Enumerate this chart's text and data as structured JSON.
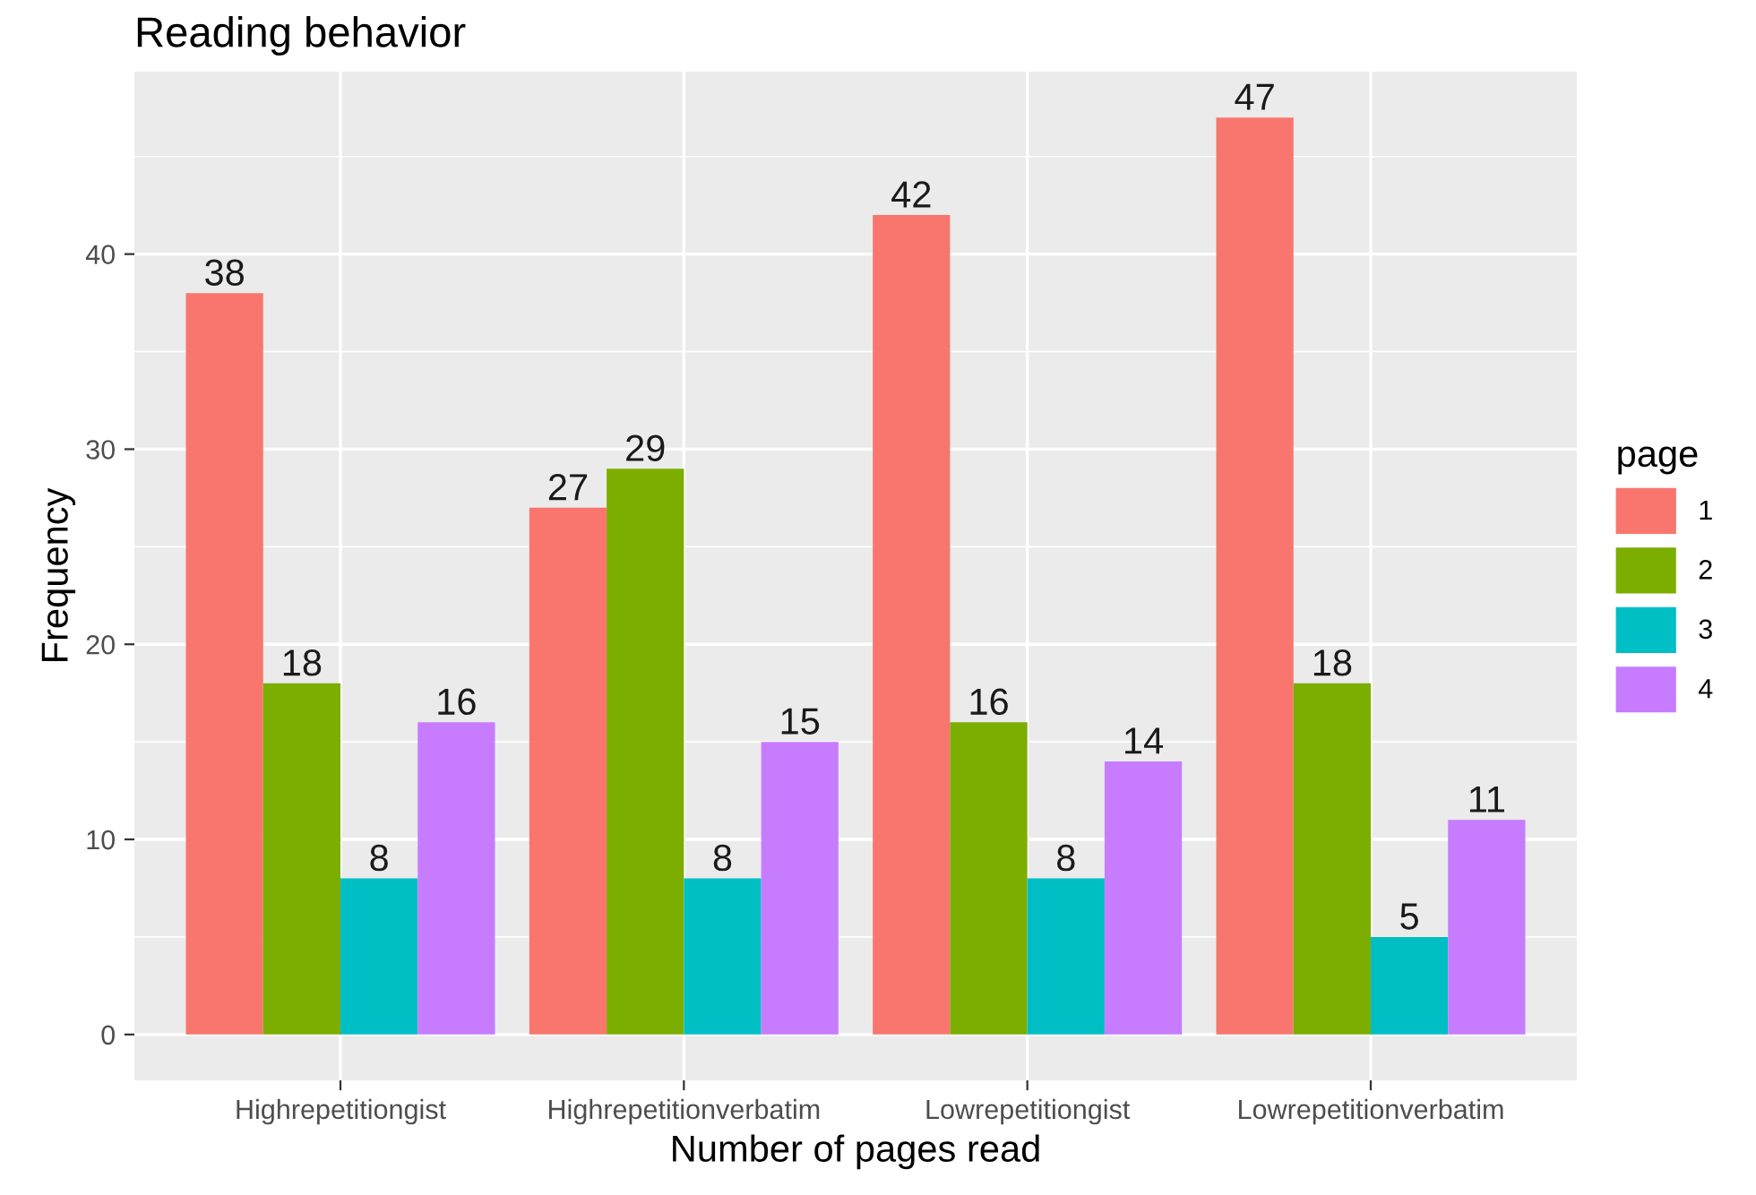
{
  "chart_data": {
    "type": "bar",
    "title": "Reading behavior",
    "xlabel": "Number of pages read",
    "ylabel": "Frequency",
    "legend_title": "page",
    "categories": [
      "Highrepetitiongist",
      "Highrepetitionverbatim",
      "Lowrepetitiongist",
      "Lowrepetitionverbatim"
    ],
    "series": [
      {
        "name": "1",
        "color": "#f8766d",
        "values": [
          38,
          27,
          42,
          47
        ]
      },
      {
        "name": "2",
        "color": "#7cae00",
        "values": [
          18,
          29,
          16,
          18
        ]
      },
      {
        "name": "3",
        "color": "#00bfc4",
        "values": [
          8,
          8,
          8,
          5
        ]
      },
      {
        "name": "4",
        "color": "#c77cff",
        "values": [
          16,
          15,
          14,
          11
        ]
      }
    ],
    "ylim": [
      -2.35,
      49.35
    ],
    "yticks": [
      0,
      10,
      20,
      30,
      40
    ],
    "grid": true,
    "legend": "right",
    "data_labels": true
  }
}
